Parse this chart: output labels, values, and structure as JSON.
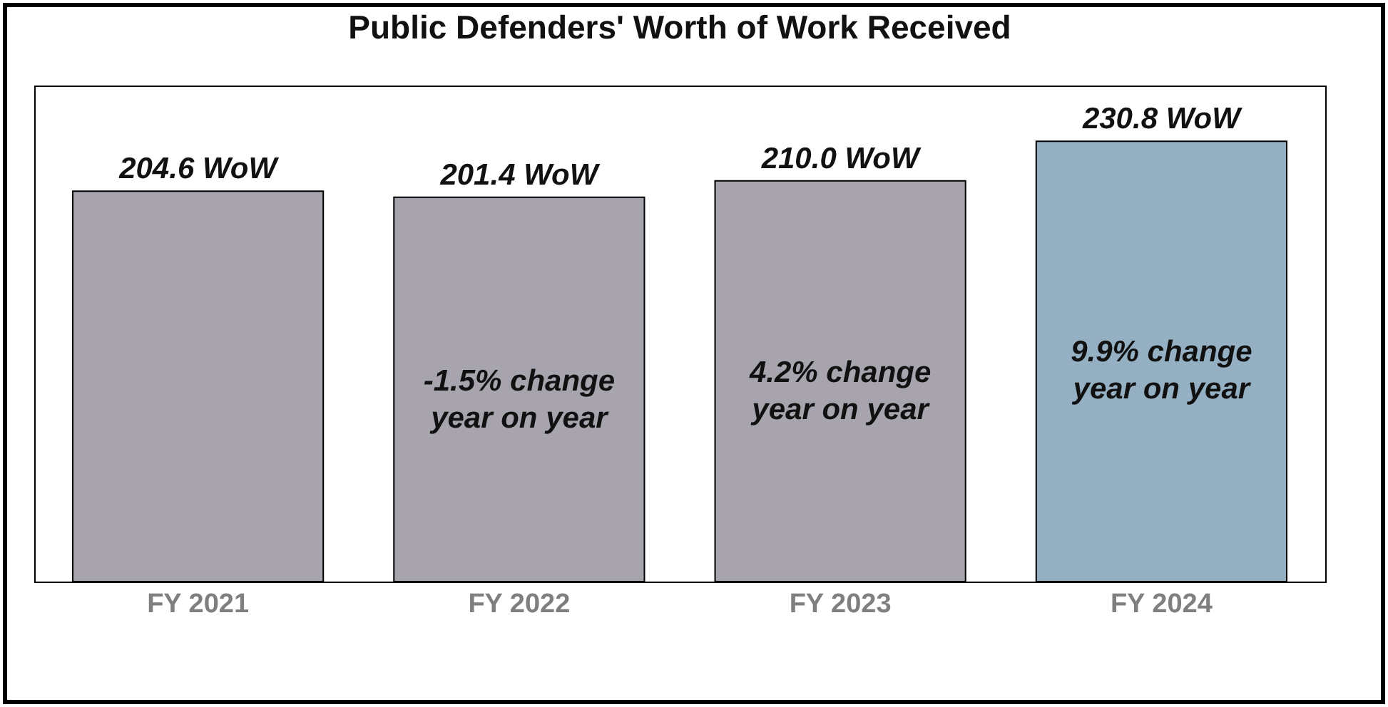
{
  "chart_data": {
    "type": "bar",
    "title": "Public Defenders' Worth of Work Received",
    "categories": [
      "FY 2021",
      "FY 2022",
      "FY 2023",
      "FY 2024"
    ],
    "values": [
      204.6,
      201.4,
      210.0,
      230.8
    ],
    "colors": [
      "#a8a4ad",
      "#a8a4ad",
      "#a8a4ad",
      "#94b0c2"
    ],
    "value_labels": [
      "204.6 WoW",
      "201.4 WoW",
      "210.0 WoW",
      "230.8 WoW"
    ],
    "annotations": [
      "-1.5% change year on year",
      "4.2% change year on year",
      "9.9% change year on year"
    ]
  }
}
